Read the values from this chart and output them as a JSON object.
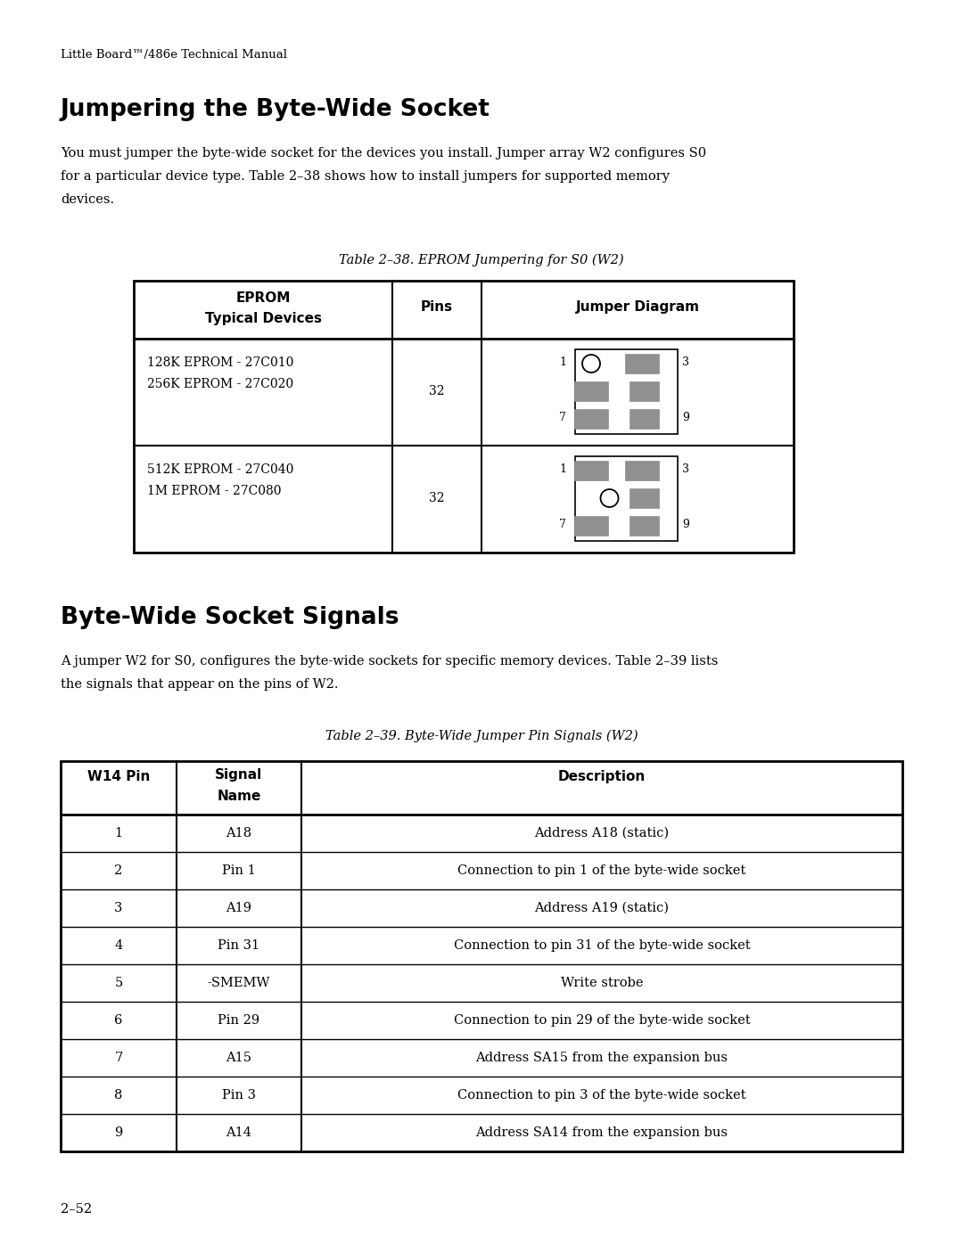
{
  "page_header": "Little Board™/486e Technical Manual",
  "section1_title": "Jumpering the Byte-Wide Socket",
  "section1_body_lines": [
    "You must jumper the byte-wide socket for the devices you install. Jumper array W2 configures S0",
    "for a particular device type. Table 2–38 shows how to install jumpers for supported memory",
    "devices."
  ],
  "table1_caption": "Table 2–38. EPROM Jumpering for S0 (W2)",
  "table1_rows": [
    {
      "device": "128K EPROM - 27C010\n256K EPROM - 27C020",
      "pins": "32",
      "diagram": "A"
    },
    {
      "device": "512K EPROM - 27C040\n1M EPROM - 27C080",
      "pins": "32",
      "diagram": "B"
    }
  ],
  "section2_title": "Byte-Wide Socket Signals",
  "section2_body_lines": [
    "A jumper W2 for S0, configures the byte-wide sockets for specific memory devices. Table 2–39 lists",
    "the signals that appear on the pins of W2."
  ],
  "table2_caption": "Table 2–39. Byte-Wide Jumper Pin Signals (W2)",
  "table2_rows": [
    [
      "1",
      "A18",
      "Address A18 (static)"
    ],
    [
      "2",
      "Pin 1",
      "Connection to pin 1 of the byte-wide socket"
    ],
    [
      "3",
      "A19",
      "Address A19 (static)"
    ],
    [
      "4",
      "Pin 31",
      "Connection to pin 31 of the byte-wide socket"
    ],
    [
      "5",
      "-SMEMW",
      "Write strobe"
    ],
    [
      "6",
      "Pin 29",
      "Connection to pin 29 of the byte-wide socket"
    ],
    [
      "7",
      "A15",
      "Address SA15 from the expansion bus"
    ],
    [
      "8",
      "Pin 3",
      "Connection to pin 3 of the byte-wide socket"
    ],
    [
      "9",
      "A14",
      "Address SA14 from the expansion bus"
    ]
  ],
  "page_footer": "2–52",
  "gray_color": "#909090"
}
